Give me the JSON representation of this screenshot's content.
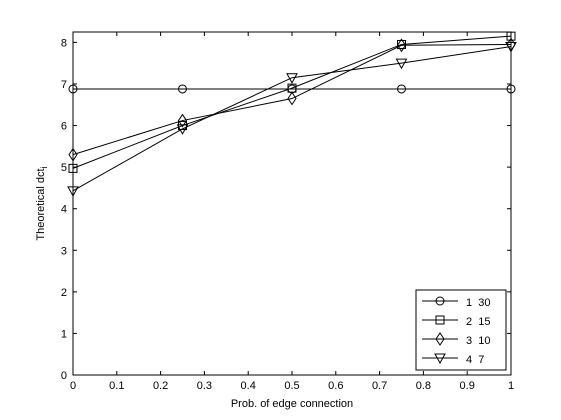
{
  "chart_data": {
    "type": "line",
    "title": "",
    "xlabel": "Prob. of edge connection",
    "ylabel": "Theoretical dct",
    "ylabel_subscript": "i",
    "xlim": [
      0,
      1
    ],
    "ylim": [
      0,
      8.25
    ],
    "xticks": [
      "0",
      "0.1",
      "0.2",
      "0.3",
      "0.4",
      "0.5",
      "0.6",
      "0.7",
      "0.8",
      "0.9",
      "1"
    ],
    "yticks": [
      "0",
      "1",
      "2",
      "3",
      "4",
      "5",
      "6",
      "7",
      "8"
    ],
    "grid": false,
    "legend_position": "bottom-right",
    "line_color": "#000000",
    "x": [
      0,
      0.25,
      0.5,
      0.75,
      1
    ],
    "series": [
      {
        "name": "1  30",
        "marker": "circle",
        "values": [
          6.88,
          6.88,
          6.88,
          6.88,
          6.88
        ]
      },
      {
        "name": "2  15",
        "marker": "square",
        "values": [
          4.97,
          6.0,
          6.9,
          7.95,
          8.15
        ]
      },
      {
        "name": "3  10",
        "marker": "diamond",
        "values": [
          5.3,
          6.12,
          6.65,
          7.93,
          7.95
        ]
      },
      {
        "name": "4  7",
        "marker": "triangle-down",
        "values": [
          4.43,
          5.92,
          7.15,
          7.5,
          7.9
        ]
      }
    ]
  }
}
